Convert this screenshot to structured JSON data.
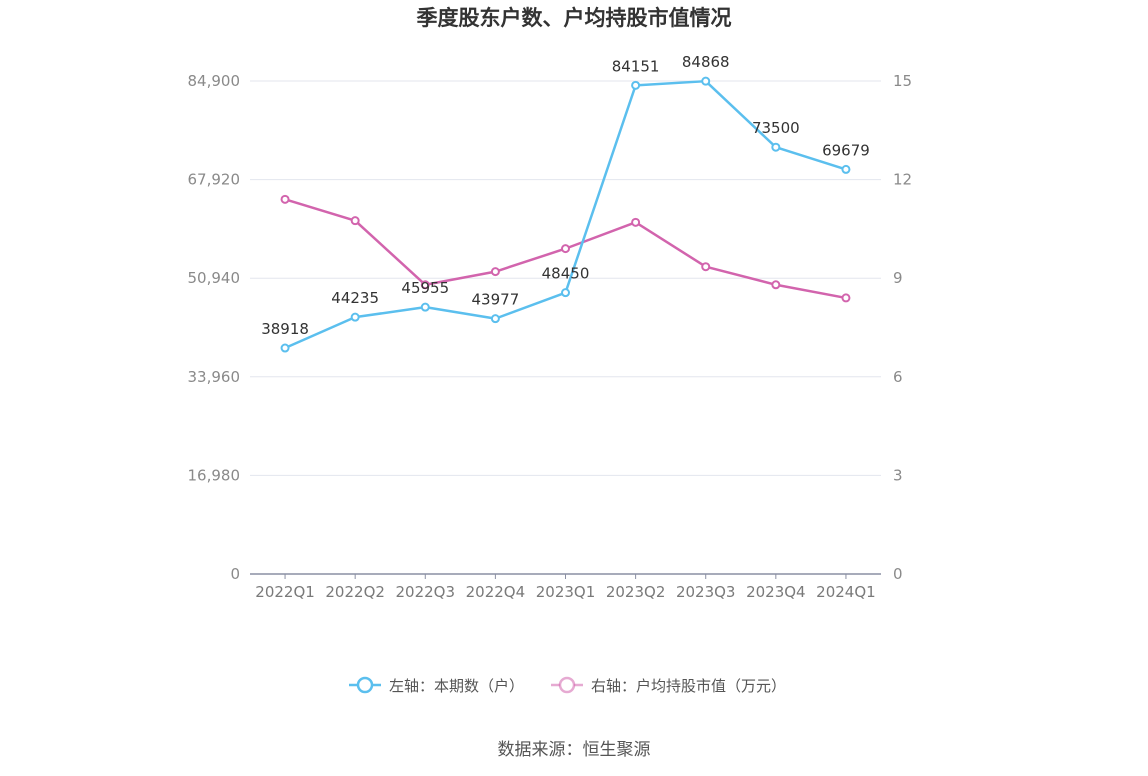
{
  "chart_data": {
    "type": "line",
    "title": "季度股东户数、户均持股市值情况",
    "categories": [
      "2022Q1",
      "2022Q2",
      "2022Q3",
      "2022Q4",
      "2023Q1",
      "2023Q2",
      "2023Q3",
      "2023Q4",
      "2024Q1"
    ],
    "series": [
      {
        "name": "左轴：本期数（户）",
        "axis": "left",
        "color": "#5bbfee",
        "values": [
          38918,
          44235,
          45955,
          43977,
          48450,
          84151,
          84868,
          73500,
          69679
        ],
        "labels": [
          "38918",
          "44235",
          "45955",
          "43977",
          "48450",
          "84151",
          "84868",
          "73500",
          "69679"
        ]
      },
      {
        "name": "右轴：户均持股市值（万元）",
        "axis": "right",
        "color": "#d264ad",
        "values": [
          11.4,
          10.75,
          8.8,
          9.2,
          9.9,
          10.7,
          9.35,
          8.8,
          8.4
        ]
      }
    ],
    "y_left": {
      "ticks": [
        "0",
        "16,980",
        "33,960",
        "50,940",
        "67,920",
        "84,900"
      ],
      "max": 84900,
      "min": 0
    },
    "y_right": {
      "ticks": [
        "0",
        "3",
        "6",
        "9",
        "12",
        "15"
      ],
      "max": 15,
      "min": 0
    },
    "grid": true,
    "legend_position": "bottom"
  },
  "source": "数据来源：恒生聚源"
}
